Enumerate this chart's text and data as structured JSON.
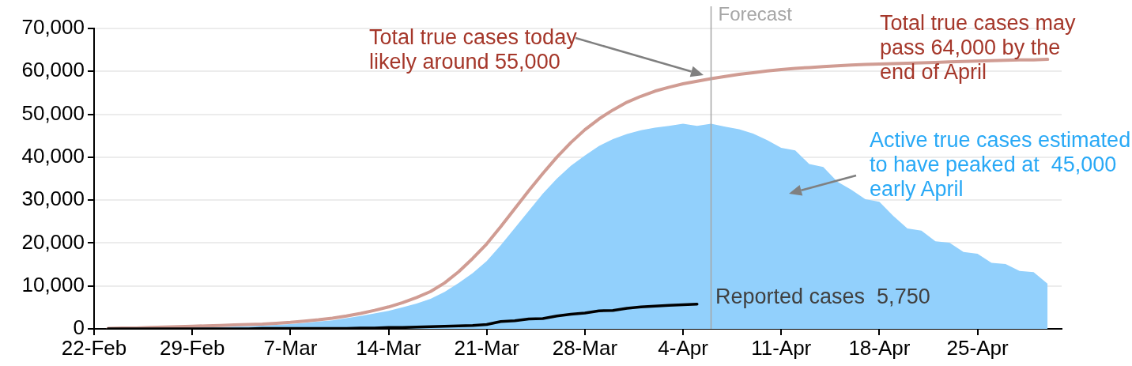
{
  "chart_data": {
    "type": "line",
    "x": [
      "--02-23",
      "--02-24",
      "--02-25",
      "--02-26",
      "--02-27",
      "--02-28",
      "--02-29",
      "--03-01",
      "--03-02",
      "--03-03",
      "--03-04",
      "--03-05",
      "--03-06",
      "--03-07",
      "--03-08",
      "--03-09",
      "--03-10",
      "--03-11",
      "--03-12",
      "--03-13",
      "--03-14",
      "--03-15",
      "--03-16",
      "--03-17",
      "--03-18",
      "--03-19",
      "--03-20",
      "--03-21",
      "--03-22",
      "--03-23",
      "--03-24",
      "--03-25",
      "--03-26",
      "--03-27",
      "--03-28",
      "--03-29",
      "--03-30",
      "--03-31",
      "--04-01",
      "--04-02",
      "--04-03",
      "--04-04",
      "--04-05",
      "--04-06",
      "--04-07",
      "--04-08",
      "--04-09",
      "--04-10",
      "--04-11",
      "--04-12",
      "--04-13",
      "--04-14",
      "--04-15",
      "--04-16",
      "--04-17",
      "--04-18",
      "--04-19",
      "--04-20",
      "--04-21",
      "--04-22",
      "--04-23",
      "--04-24",
      "--04-25",
      "--04-26",
      "--04-27",
      "--04-28",
      "--04-29",
      "--04-30"
    ],
    "series": [
      {
        "type": "area",
        "color": "#92d0fc",
        "values": [
          0,
          0,
          100,
          100,
          200,
          200,
          300,
          400,
          400,
          500,
          600,
          800,
          900,
          1100,
          1400,
          1700,
          2000,
          2500,
          3000,
          3600,
          4200,
          5000,
          5900,
          7000,
          8600,
          10700,
          13000,
          15800,
          19500,
          23500,
          27500,
          31500,
          35000,
          38000,
          40400,
          42600,
          44200,
          45400,
          46300,
          46900,
          47300,
          47800,
          47300,
          47800,
          47100,
          46500,
          45500,
          44000,
          42200,
          41600,
          38400,
          37700,
          34300,
          32400,
          30200,
          29600,
          26300,
          23400,
          22900,
          20400,
          20100,
          17900,
          17500,
          15400,
          15100,
          13500,
          13200,
          10500
        ]
      },
      {
        "color": "#d09c93",
        "values": [
          100,
          200,
          200,
          300,
          400,
          500,
          600,
          700,
          800,
          900,
          1000,
          1100,
          1300,
          1500,
          1800,
          2100,
          2500,
          3000,
          3600,
          4300,
          5100,
          6100,
          7300,
          8700,
          10700,
          13300,
          16400,
          19800,
          23800,
          28000,
          32200,
          36200,
          40000,
          43400,
          46400,
          48900,
          51000,
          52800,
          54200,
          55400,
          56300,
          57100,
          57700,
          58300,
          58800,
          59300,
          59700,
          60100,
          60400,
          60700,
          60900,
          61100,
          61300,
          61500,
          61600,
          61700,
          61800,
          61900,
          62000,
          62100,
          62200,
          62300,
          62400,
          62500,
          62600,
          62700,
          62700,
          62800
        ]
      },
      {
        "color": "#000000",
        "x": [
          "--02-23",
          "--02-24",
          "--02-25",
          "--02-26",
          "--02-27",
          "--02-28",
          "--02-29",
          "--03-01",
          "--03-02",
          "--03-03",
          "--03-04",
          "--03-05",
          "--03-06",
          "--03-07",
          "--03-08",
          "--03-09",
          "--03-10",
          "--03-11",
          "--03-12",
          "--03-13",
          "--03-14",
          "--03-15",
          "--03-16",
          "--03-17",
          "--03-18",
          "--03-19",
          "--03-20",
          "--03-21",
          "--03-22",
          "--03-23",
          "--03-24",
          "--03-25",
          "--03-26",
          "--03-27",
          "--03-28",
          "--03-29",
          "--03-30",
          "--03-31",
          "--04-01",
          "--04-02",
          "--04-03",
          "--04-04",
          "--04-05"
        ],
        "values": [
          0,
          0,
          0,
          0,
          0,
          0,
          0,
          0,
          0,
          0,
          0,
          100,
          100,
          100,
          100,
          100,
          100,
          100,
          200,
          200,
          300,
          300,
          400,
          500,
          600,
          700,
          800,
          1000,
          1700,
          1900,
          2300,
          2400,
          3000,
          3400,
          3700,
          4200,
          4300,
          4800,
          5100,
          5300,
          5500,
          5600,
          5750
        ]
      }
    ],
    "xlim": [
      "--02-22",
      "--05-01"
    ],
    "xticks": [
      {
        "value": "--02-22",
        "label": "22-Feb"
      },
      {
        "value": "--02-29",
        "label": "29-Feb"
      },
      {
        "value": "--03-07",
        "label": "7-Mar"
      },
      {
        "value": "--03-14",
        "label": "14-Mar"
      },
      {
        "value": "--03-21",
        "label": "21-Mar"
      },
      {
        "value": "--03-28",
        "label": "28-Mar"
      },
      {
        "value": "--04-04",
        "label": "4-Apr"
      },
      {
        "value": "--04-11",
        "label": "11-Apr"
      },
      {
        "value": "--04-18",
        "label": "18-Apr"
      },
      {
        "value": "--04-25",
        "label": "25-Apr"
      }
    ],
    "ylim": [
      0,
      70000
    ],
    "yticks": [
      0,
      {
        "value": 10000,
        "label": "10,000"
      },
      {
        "value": 20000,
        "label": "20,000"
      },
      {
        "value": 30000,
        "label": "30,000"
      },
      {
        "value": 40000,
        "label": "40,000"
      },
      {
        "value": 50000,
        "label": "50,000"
      },
      {
        "value": 60000,
        "label": "60,000"
      },
      {
        "value": 70000,
        "label": "70,000"
      }
    ],
    "grid": "y",
    "legend": false,
    "ref_lines": [
      {
        "axis": "x",
        "value": "--04-06",
        "label": "Forecast",
        "color": "#a6a6a6"
      }
    ],
    "annotations": [
      "Total true cases today likely around 55,000",
      "Total true cases may pass 64,000 by the end of April",
      "Active true cases estimated to have peaked at  45,000 early April",
      "Reported cases  5,750"
    ]
  }
}
